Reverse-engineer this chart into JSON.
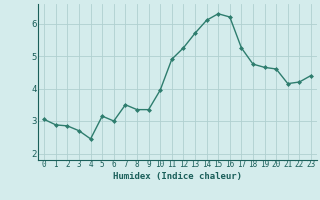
{
  "xlabel": "Humidex (Indice chaleur)",
  "x_values": [
    0,
    1,
    2,
    3,
    4,
    5,
    6,
    7,
    8,
    9,
    10,
    11,
    12,
    13,
    14,
    15,
    16,
    17,
    18,
    19,
    20,
    21,
    22,
    23
  ],
  "y_values": [
    3.05,
    2.88,
    2.85,
    2.7,
    2.45,
    3.15,
    3.0,
    3.5,
    3.35,
    3.35,
    3.95,
    4.9,
    5.25,
    5.7,
    6.1,
    6.3,
    6.2,
    5.25,
    4.75,
    4.65,
    4.6,
    4.15,
    4.2,
    4.4
  ],
  "line_color": "#2e7d6e",
  "marker_color": "#2e7d6e",
  "bg_color": "#d4ecec",
  "grid_color": "#b0d0d0",
  "ylim": [
    1.8,
    6.6
  ],
  "yticks": [
    2,
    3,
    4,
    5,
    6
  ],
  "xlim": [
    -0.5,
    23.5
  ],
  "label_color": "#1a5f5a",
  "tick_color": "#1a5f5a",
  "tick_fontsize": 5.5,
  "xlabel_fontsize": 6.5,
  "linewidth": 1.0,
  "markersize": 2.0
}
